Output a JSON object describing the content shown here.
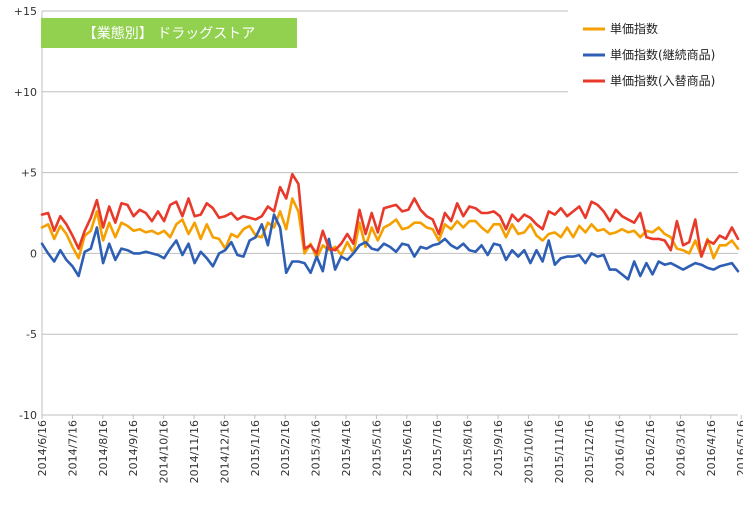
{
  "chart_data": {
    "type": "line",
    "title": "【業態別】 ドラッグストア",
    "xlabel": "",
    "ylabel": "",
    "ylim": [
      -10,
      15
    ],
    "yticks": [
      {
        "value": 15,
        "label": "+15"
      },
      {
        "value": 10,
        "label": "+10"
      },
      {
        "value": 5,
        "label": "+5"
      },
      {
        "value": 0,
        "label": "0"
      },
      {
        "value": -5,
        "label": "-5"
      },
      {
        "value": -10,
        "label": "-10"
      }
    ],
    "x_tick_labels": [
      "2014/6/16",
      "2014/7/16",
      "2014/8/16",
      "2014/9/16",
      "2014/10/16",
      "2014/11/16",
      "2014/12/16",
      "2015/1/16",
      "2015/2/16",
      "2015/3/16",
      "2015/4/16",
      "2015/5/16",
      "2015/6/16",
      "2015/7/16",
      "2015/8/16",
      "2015/9/16",
      "2015/10/16",
      "2015/11/16",
      "2015/12/16",
      "2016/1/16",
      "2016/2/16",
      "2016/3/16",
      "2016/4/16",
      "2016/5/16"
    ],
    "grid": "horizontal",
    "legend_position": "top-right",
    "series": [
      {
        "name": "単価指数",
        "color": "#F5A000",
        "values": [
          1.6,
          1.8,
          0.9,
          1.7,
          1.2,
          0.4,
          -0.3,
          1.1,
          1.4,
          2.6,
          0.8,
          1.9,
          1.0,
          1.9,
          1.7,
          1.4,
          1.5,
          1.3,
          1.4,
          1.2,
          1.4,
          1.0,
          1.8,
          2.1,
          1.2,
          1.9,
          0.9,
          1.8,
          1.0,
          0.9,
          0.3,
          1.2,
          1.0,
          1.5,
          1.7,
          1.1,
          1.0,
          1.9,
          1.6,
          2.6,
          1.5,
          3.4,
          2.6,
          0.0,
          0.6,
          -0.3,
          0.5,
          0.2,
          0.4,
          -0.1,
          0.7,
          0.0,
          1.9,
          0.4,
          1.6,
          0.8,
          1.6,
          1.8,
          2.1,
          1.5,
          1.6,
          1.9,
          1.9,
          1.6,
          1.5,
          0.8,
          1.8,
          1.5,
          2.0,
          1.6,
          2.0,
          2.0,
          1.6,
          1.3,
          1.8,
          1.8,
          1.0,
          1.8,
          1.2,
          1.3,
          1.8,
          1.1,
          0.8,
          1.2,
          1.3,
          1.0,
          1.6,
          1.0,
          1.7,
          1.3,
          1.8,
          1.4,
          1.5,
          1.2,
          1.3,
          1.5,
          1.3,
          1.4,
          1.0,
          1.4,
          1.3,
          1.6,
          1.2,
          1.0,
          0.3,
          0.2,
          0.0,
          0.8,
          -0.2,
          0.9,
          -0.3,
          0.5,
          0.5,
          0.8,
          0.3
        ]
      },
      {
        "name": "単価指数(継続商品)",
        "color": "#2E5FB4",
        "values": [
          0.6,
          0.0,
          -0.5,
          0.2,
          -0.4,
          -0.8,
          -1.4,
          0.1,
          0.3,
          1.6,
          -0.6,
          0.6,
          -0.4,
          0.3,
          0.2,
          0.0,
          0.0,
          0.1,
          0.0,
          -0.1,
          -0.3,
          0.3,
          0.8,
          -0.1,
          0.6,
          -0.6,
          0.1,
          -0.3,
          -0.8,
          0.0,
          0.2,
          0.7,
          -0.1,
          -0.2,
          0.8,
          1.0,
          1.8,
          0.5,
          2.4,
          1.6,
          -1.2,
          -0.5,
          -0.5,
          -0.6,
          -1.2,
          -0.2,
          -1.1,
          0.9,
          -1.0,
          -0.2,
          -0.4,
          0.0,
          0.5,
          0.7,
          0.3,
          0.2,
          0.6,
          0.4,
          0.1,
          0.6,
          0.5,
          -0.2,
          0.4,
          0.3,
          0.5,
          0.6,
          0.9,
          0.5,
          0.3,
          0.6,
          0.2,
          0.1,
          0.5,
          -0.1,
          0.6,
          0.5,
          -0.4,
          0.2,
          -0.2,
          0.2,
          -0.6,
          0.2,
          -0.5,
          0.8,
          -0.7,
          -0.3,
          -0.2,
          -0.2,
          -0.1,
          -0.6,
          0.0,
          -0.2,
          -0.1,
          -1.0,
          -1.0,
          -1.3,
          -1.6,
          -0.5,
          -1.4,
          -0.6,
          -1.3,
          -0.5,
          -0.7,
          -0.6,
          -0.8,
          -1.0,
          -0.8,
          -0.6,
          -0.7,
          -0.9,
          -1.0,
          -0.8,
          -0.7,
          -0.6,
          -1.1
        ]
      },
      {
        "name": "単価指数(入替商品)",
        "color": "#E8392A",
        "values": [
          2.4,
          2.5,
          1.4,
          2.3,
          1.8,
          1.1,
          0.3,
          1.4,
          2.2,
          3.3,
          1.6,
          2.9,
          1.9,
          3.1,
          3.0,
          2.3,
          2.7,
          2.5,
          2.0,
          2.6,
          2.0,
          3.0,
          3.2,
          2.3,
          3.4,
          2.3,
          2.4,
          3.1,
          2.8,
          2.2,
          2.3,
          2.5,
          2.1,
          2.3,
          2.2,
          2.1,
          2.3,
          2.9,
          2.6,
          4.1,
          3.4,
          4.9,
          4.3,
          0.3,
          0.5,
          0.0,
          1.4,
          0.3,
          0.2,
          0.6,
          1.2,
          0.6,
          2.7,
          1.2,
          2.5,
          1.3,
          2.8,
          2.9,
          3.0,
          2.6,
          2.7,
          3.4,
          2.7,
          2.3,
          2.1,
          1.2,
          2.5,
          2.0,
          3.1,
          2.3,
          2.9,
          2.8,
          2.5,
          2.5,
          2.6,
          2.3,
          1.5,
          2.4,
          2.0,
          2.4,
          2.2,
          1.8,
          1.5,
          2.6,
          2.4,
          2.8,
          2.3,
          2.6,
          2.9,
          2.2,
          3.2,
          3.0,
          2.6,
          2.0,
          2.7,
          2.3,
          2.1,
          1.9,
          2.5,
          1.0,
          0.9,
          0.9,
          0.8,
          0.2,
          2.0,
          0.5,
          0.7,
          2.1,
          -0.2,
          0.8,
          0.6,
          1.1,
          0.9,
          1.6,
          0.9
        ]
      }
    ]
  }
}
